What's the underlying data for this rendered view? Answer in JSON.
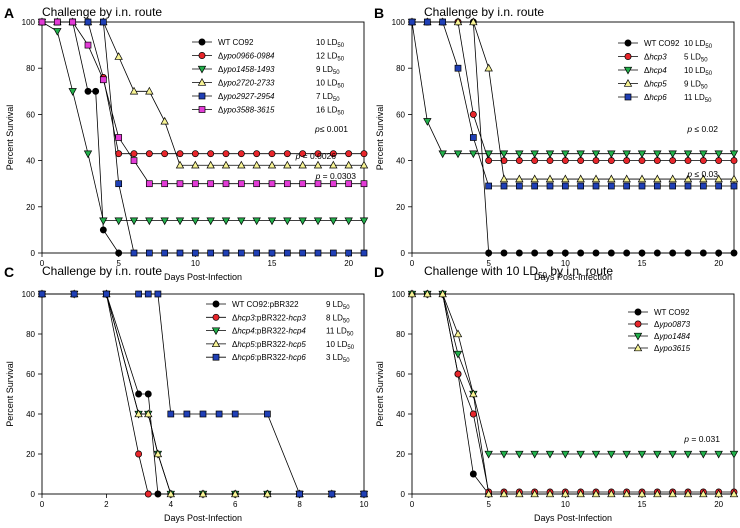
{
  "chart_data": [
    {
      "type": "line",
      "panel": "A",
      "title": "Challenge by i.n. route",
      "xlabel": "Days Post-Infection",
      "ylabel": "Percent Survival",
      "xlim": [
        0,
        21
      ],
      "ylim": [
        0,
        100
      ],
      "xticks": [
        0,
        5,
        10,
        15,
        20
      ],
      "yticks": [
        0,
        20,
        40,
        60,
        80,
        100
      ],
      "legend_position": "top-right",
      "annotations": [
        "p≤ 0.001",
        "p = 0.0026",
        "p = 0.0303"
      ],
      "series": [
        {
          "name": "WT CO92",
          "ld50": "10 LD50",
          "italic": false,
          "marker": "circle",
          "color": "#000000",
          "x": [
            0,
            1,
            2,
            3,
            3.5,
            4,
            5
          ],
          "y": [
            100,
            100,
            100,
            70,
            70,
            10,
            0
          ]
        },
        {
          "name": "Δypo0966-0984",
          "ld50": "12 LD50",
          "italic": true,
          "marker": "circle",
          "color": "#e8262b",
          "x": [
            0,
            1,
            2,
            3,
            4,
            5,
            6,
            7,
            8,
            9,
            10,
            11,
            12,
            13,
            14,
            15,
            16,
            17,
            18,
            19,
            20,
            21
          ],
          "y": [
            100,
            100,
            100,
            100,
            76,
            43,
            43,
            43,
            43,
            43,
            43,
            43,
            43,
            43,
            43,
            43,
            43,
            43,
            43,
            43,
            43,
            43
          ]
        },
        {
          "name": "Δypo1458-1493",
          "ld50": "9 LD50",
          "italic": true,
          "marker": "triangle-down",
          "color": "#22b04b",
          "x": [
            0,
            1,
            2,
            3,
            4,
            5,
            6,
            7,
            8,
            9,
            10,
            11,
            12,
            13,
            14,
            15,
            16,
            17,
            18,
            19,
            20,
            21
          ],
          "y": [
            100,
            96,
            70,
            43,
            14,
            14,
            14,
            14,
            14,
            14,
            14,
            14,
            14,
            14,
            14,
            14,
            14,
            14,
            14,
            14,
            14,
            14
          ]
        },
        {
          "name": "Δypo2720-2733",
          "ld50": "10 LD50",
          "italic": true,
          "marker": "triangle-up",
          "color": "#f7f394",
          "x": [
            0,
            1,
            2,
            3,
            4,
            5,
            6,
            7,
            8,
            9,
            10,
            11,
            12,
            13,
            14,
            15,
            16,
            17,
            18,
            19,
            20,
            21
          ],
          "y": [
            100,
            100,
            100,
            100,
            100,
            85,
            70,
            70,
            57,
            38,
            38,
            38,
            38,
            38,
            38,
            38,
            38,
            38,
            38,
            38,
            38,
            38
          ]
        },
        {
          "name": "Δypo2927-2954",
          "ld50": "7 LD50",
          "italic": true,
          "marker": "square",
          "color": "#1f3fb5",
          "x": [
            0,
            1,
            2,
            3,
            4,
            5,
            6,
            7,
            8,
            9,
            10,
            11,
            12,
            13,
            14,
            15,
            16,
            17,
            18,
            19,
            20,
            21
          ],
          "y": [
            100,
            100,
            100,
            100,
            100,
            30,
            0,
            0,
            0,
            0,
            0,
            0,
            0,
            0,
            0,
            0,
            0,
            0,
            0,
            0,
            0,
            0
          ]
        },
        {
          "name": "Δypo3588-3615",
          "ld50": "16 LD50",
          "italic": true,
          "marker": "square",
          "color": "#e23bd6",
          "x": [
            0,
            1,
            2,
            3,
            4,
            5,
            6,
            7,
            8,
            9,
            10,
            11,
            12,
            13,
            14,
            15,
            16,
            17,
            18,
            19,
            20,
            21
          ],
          "y": [
            100,
            100,
            100,
            90,
            75,
            50,
            40,
            30,
            30,
            30,
            30,
            30,
            30,
            30,
            30,
            30,
            30,
            30,
            30,
            30,
            30,
            30
          ]
        }
      ]
    },
    {
      "type": "line",
      "panel": "B",
      "title": "Challenge by i.n. route",
      "xlabel": "Days Post-Infection",
      "ylabel": "Percent Survival",
      "xlim": [
        0,
        21
      ],
      "ylim": [
        0,
        100
      ],
      "xticks": [
        0,
        5,
        10,
        15,
        20
      ],
      "yticks": [
        0,
        20,
        40,
        60,
        80,
        100
      ],
      "legend_position": "top-right",
      "annotations": [
        "p ≤ 0.02",
        "p ≤ 0.03"
      ],
      "series": [
        {
          "name": "WT CO92",
          "ld50": "10 LD50",
          "italic": false,
          "marker": "circle",
          "color": "#000000",
          "x": [
            0,
            1,
            2,
            3,
            4,
            5,
            6,
            7,
            8,
            9,
            10,
            11,
            12,
            13,
            14,
            15,
            16,
            17,
            18,
            19,
            20,
            21
          ],
          "y": [
            100,
            100,
            100,
            100,
            100,
            0,
            0,
            0,
            0,
            0,
            0,
            0,
            0,
            0,
            0,
            0,
            0,
            0,
            0,
            0,
            0,
            0
          ]
        },
        {
          "name": "Δhcp3",
          "ld50": "5 LD50",
          "italic": true,
          "marker": "circle",
          "color": "#e8262b",
          "x": [
            0,
            1,
            2,
            3,
            4,
            5,
            6,
            7,
            8,
            9,
            10,
            11,
            12,
            13,
            14,
            15,
            16,
            17,
            18,
            19,
            20,
            21
          ],
          "y": [
            100,
            100,
            100,
            100,
            60,
            40,
            40,
            40,
            40,
            40,
            40,
            40,
            40,
            40,
            40,
            40,
            40,
            40,
            40,
            40,
            40,
            40
          ]
        },
        {
          "name": "Δhcp4",
          "ld50": "10 LD50",
          "italic": true,
          "marker": "triangle-down",
          "color": "#22b04b",
          "x": [
            0,
            1,
            2,
            3,
            4,
            5,
            6,
            7,
            8,
            9,
            10,
            11,
            12,
            13,
            14,
            15,
            16,
            17,
            18,
            19,
            20,
            21
          ],
          "y": [
            100,
            57,
            43,
            43,
            43,
            43,
            43,
            43,
            43,
            43,
            43,
            43,
            43,
            43,
            43,
            43,
            43,
            43,
            43,
            43,
            43,
            43
          ]
        },
        {
          "name": "Δhcp5",
          "ld50": "9 LD50",
          "italic": true,
          "marker": "triangle-up",
          "color": "#f7f394",
          "x": [
            0,
            1,
            2,
            3,
            4,
            5,
            6,
            7,
            8,
            9,
            10,
            11,
            12,
            13,
            14,
            15,
            16,
            17,
            18,
            19,
            20,
            21
          ],
          "y": [
            100,
            100,
            100,
            100,
            100,
            80,
            32,
            32,
            32,
            32,
            32,
            32,
            32,
            32,
            32,
            32,
            32,
            32,
            32,
            32,
            32,
            32
          ]
        },
        {
          "name": "Δhcp6",
          "ld50": "11 LD50",
          "italic": true,
          "marker": "square",
          "color": "#1f3fb5",
          "x": [
            0,
            1,
            2,
            3,
            4,
            5,
            6,
            7,
            8,
            9,
            10,
            11,
            12,
            13,
            14,
            15,
            16,
            17,
            18,
            19,
            20,
            21
          ],
          "y": [
            100,
            100,
            100,
            80,
            50,
            29,
            29,
            29,
            29,
            29,
            29,
            29,
            29,
            29,
            29,
            29,
            29,
            29,
            29,
            29,
            29,
            29
          ]
        }
      ]
    },
    {
      "type": "line",
      "panel": "C",
      "title": "Challenge by i.n. route",
      "xlabel": "Days Post-Infection",
      "ylabel": "Percent Survival",
      "xlim": [
        0,
        10
      ],
      "ylim": [
        0,
        100
      ],
      "xticks": [
        0,
        2,
        4,
        6,
        8,
        10
      ],
      "yticks": [
        0,
        20,
        40,
        60,
        80,
        100
      ],
      "legend_position": "top-right",
      "annotations": [],
      "series": [
        {
          "name": "WT CO92:pBR322",
          "ld50": "9 LD50",
          "italic": false,
          "marker": "circle",
          "color": "#000000",
          "x": [
            0,
            1,
            2,
            3,
            3.3,
            3.6,
            4,
            5,
            6,
            7,
            8,
            9,
            10
          ],
          "y": [
            100,
            100,
            100,
            50,
            50,
            0,
            0,
            0,
            0,
            0,
            0,
            0,
            0
          ]
        },
        {
          "name": "Δhcp3:pBR322-hcp3",
          "ld50": "8 LD50",
          "italic": true,
          "marker": "circle",
          "color": "#e8262b",
          "x": [
            0,
            1,
            2,
            3,
            3.3,
            4,
            5,
            6,
            7,
            8,
            9,
            10
          ],
          "y": [
            100,
            100,
            100,
            20,
            0,
            0,
            0,
            0,
            0,
            0,
            0,
            0
          ]
        },
        {
          "name": "Δhcp4:pBR322-hcp4",
          "ld50": "11 LD50",
          "italic": true,
          "marker": "triangle-down",
          "color": "#22b04b",
          "x": [
            0,
            1,
            2,
            3,
            3.3,
            3.6,
            4,
            5,
            6,
            7,
            8,
            9,
            10
          ],
          "y": [
            100,
            100,
            100,
            40,
            40,
            20,
            0,
            0,
            0,
            0,
            0,
            0,
            0
          ]
        },
        {
          "name": "Δhcp5:pBR322-hcp5",
          "ld50": "10 LD50",
          "italic": true,
          "marker": "triangle-up",
          "color": "#f7f394",
          "x": [
            0,
            1,
            2,
            3,
            3.3,
            3.6,
            4,
            5,
            6,
            7,
            8,
            9,
            10
          ],
          "y": [
            100,
            100,
            100,
            40,
            40,
            20,
            0,
            0,
            0,
            0,
            0,
            0,
            0
          ]
        },
        {
          "name": "Δhcp6:pBR322-hcp6",
          "ld50": "3 LD50",
          "italic": true,
          "marker": "square",
          "color": "#1f3fb5",
          "x": [
            0,
            1,
            2,
            3,
            3.3,
            3.6,
            4,
            4.5,
            5,
            5.5,
            6,
            7,
            8,
            9,
            10
          ],
          "y": [
            100,
            100,
            100,
            100,
            100,
            100,
            40,
            40,
            40,
            40,
            40,
            40,
            0,
            0,
            0
          ]
        }
      ]
    },
    {
      "type": "line",
      "panel": "D",
      "title": "Challenge with 10 LD50 by i.n. route",
      "xlabel": "Days Post-Infection",
      "ylabel": "Percent Survival",
      "xlim": [
        0,
        21
      ],
      "ylim": [
        0,
        100
      ],
      "xticks": [
        0,
        5,
        10,
        15,
        20
      ],
      "yticks": [
        0,
        20,
        40,
        60,
        80,
        100
      ],
      "legend_position": "top-right",
      "annotations": [
        "p = 0.031"
      ],
      "series": [
        {
          "name": "WT CO92",
          "italic": false,
          "marker": "circle",
          "color": "#000000",
          "x": [
            0,
            1,
            2,
            3,
            4,
            5
          ],
          "y": [
            100,
            100,
            100,
            60,
            10,
            0
          ]
        },
        {
          "name": "Δypo0873",
          "italic": true,
          "marker": "circle",
          "color": "#e8262b",
          "x": [
            0,
            1,
            2,
            3,
            4,
            5,
            6,
            7,
            8,
            9,
            10,
            11,
            12,
            13,
            14,
            15,
            16,
            17,
            18,
            19,
            20,
            21
          ],
          "y": [
            100,
            100,
            100,
            60,
            40,
            1,
            1,
            1,
            1,
            1,
            1,
            1,
            1,
            1,
            1,
            1,
            1,
            1,
            1,
            1,
            1,
            1
          ]
        },
        {
          "name": "Δypo1484",
          "italic": true,
          "marker": "triangle-down",
          "color": "#22b04b",
          "x": [
            0,
            1,
            2,
            3,
            4,
            5,
            6,
            7,
            8,
            9,
            10,
            11,
            12,
            13,
            14,
            15,
            16,
            17,
            18,
            19,
            20,
            21
          ],
          "y": [
            100,
            100,
            100,
            70,
            50,
            20,
            20,
            20,
            20,
            20,
            20,
            20,
            20,
            20,
            20,
            20,
            20,
            20,
            20,
            20,
            20,
            20
          ]
        },
        {
          "name": "Δypo3615",
          "italic": true,
          "marker": "triangle-up",
          "color": "#f7f394",
          "x": [
            0,
            1,
            2,
            3,
            4,
            5,
            6,
            7,
            8,
            9,
            10,
            11,
            12,
            13,
            14,
            15,
            16,
            17,
            18,
            19,
            20,
            21
          ],
          "y": [
            100,
            100,
            100,
            80,
            50,
            0,
            0,
            0,
            0,
            0,
            0,
            0,
            0,
            0,
            0,
            0,
            0,
            0,
            0,
            0,
            0,
            0
          ]
        }
      ]
    }
  ]
}
